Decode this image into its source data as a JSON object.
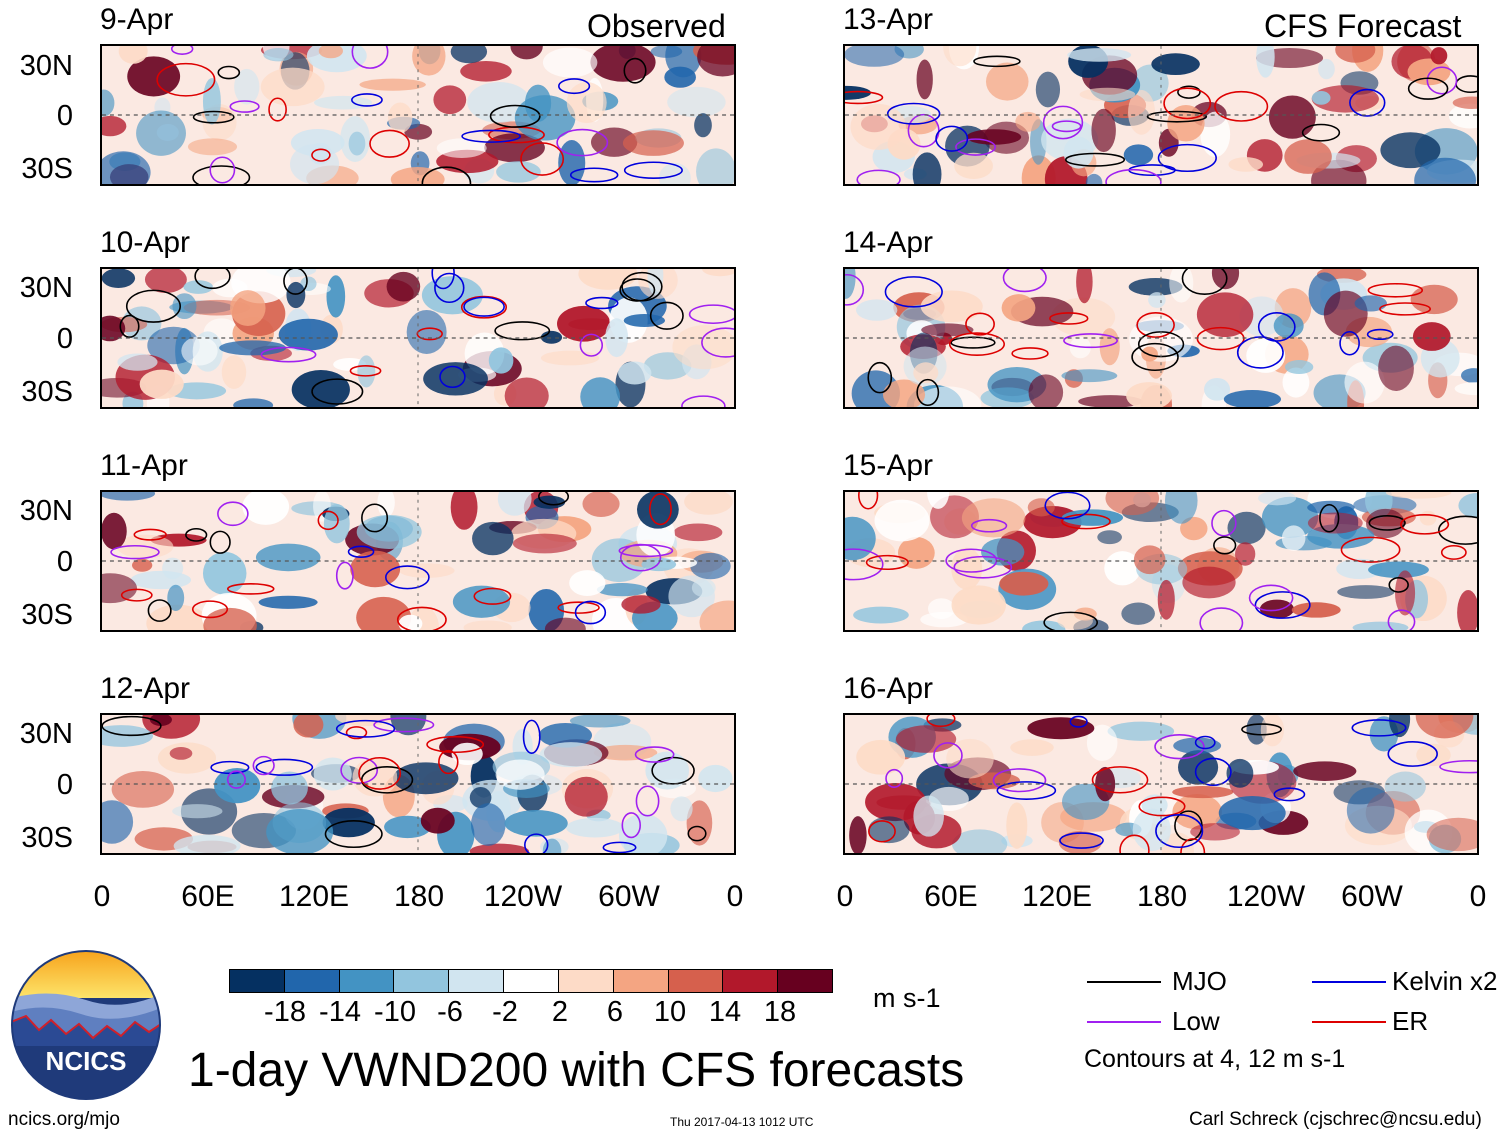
{
  "corner_labels": {
    "observed": "Observed",
    "forecast": "CFS Forecast"
  },
  "observed_dates": [
    "9-Apr",
    "10-Apr",
    "11-Apr",
    "12-Apr"
  ],
  "forecast_dates": [
    "13-Apr",
    "14-Apr",
    "15-Apr",
    "16-Apr"
  ],
  "lat_labels": [
    "30N",
    "0",
    "30S"
  ],
  "lon_labels": [
    "0",
    "60E",
    "120E",
    "180",
    "120W",
    "60W",
    "0"
  ],
  "colorbar": {
    "colors": [
      "#053061",
      "#2166ac",
      "#4393c3",
      "#92c5de",
      "#d1e5f0",
      "#ffffff",
      "#fddbc7",
      "#f4a582",
      "#d6604d",
      "#b2182b",
      "#67001f"
    ],
    "labels": [
      "-18",
      "-14",
      "-10",
      "-6",
      "-2",
      "2",
      "6",
      "10",
      "14",
      "18"
    ],
    "units": "m s-1"
  },
  "legend": {
    "mjo": "MJO",
    "kelvin": "Kelvin x2",
    "low": "Low",
    "er": "ER",
    "mjo_color": "#000000",
    "kelvin_color": "#0000dd",
    "low_color": "#a020f0",
    "er_color": "#dd0000",
    "note": "Contours at 4, 12 m s-1"
  },
  "title": "1-day VWND200 with CFS forecasts",
  "logo_text": "NCICS",
  "footer": {
    "url": "ncics.org/mjo",
    "timestamp": "Thu 2017-04-13 1012 UTC",
    "author": "Carl Schreck (cjschrec@ncsu.edu)"
  }
}
